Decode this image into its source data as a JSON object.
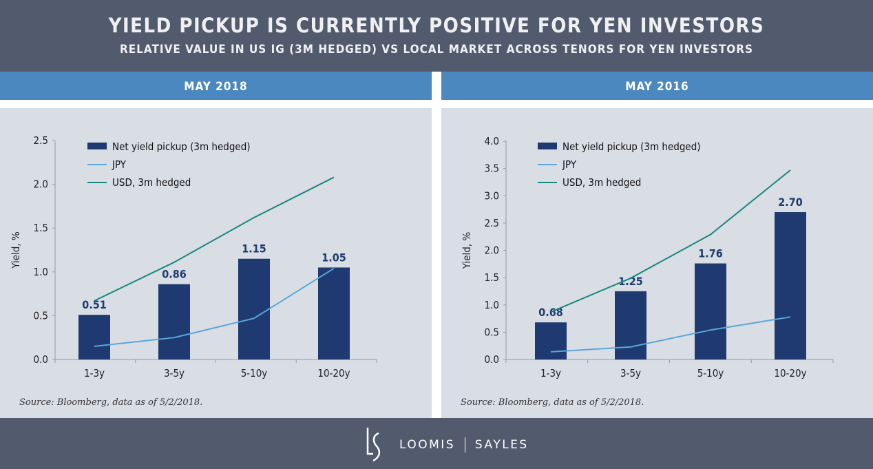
{
  "header": {
    "title": "YIELD PICKUP IS CURRENTLY POSITIVE FOR YEN INVESTORS",
    "subtitle": "RELATIVE VALUE IN US IG (3M HEDGED) VS LOCAL MARKET ACROSS TENORS FOR YEN INVESTORS"
  },
  "footer": {
    "logo_left": "LOOMIS",
    "logo_right": "SAYLES",
    "logo_mark": "LS"
  },
  "colors": {
    "bar": "#1e3a70",
    "jpy": "#5aa6dd",
    "usd": "#17877f",
    "header": "#525b6e",
    "band": "#4a88bf",
    "panel": "#d9dde4"
  },
  "chart_data": [
    {
      "type": "bar+line",
      "panel_title": "MAY 2018",
      "ylabel": "Yield, %",
      "ylim": [
        0,
        2.5
      ],
      "yticks": [
        "0.0",
        "0.5",
        "1.0",
        "1.5",
        "2.0",
        "2.5"
      ],
      "categories": [
        "1-3y",
        "3-5y",
        "5-10y",
        "10-20y"
      ],
      "series": [
        {
          "name": "Net yield pickup (3m hedged)",
          "type": "bar",
          "values": [
            0.51,
            0.86,
            1.15,
            1.05
          ],
          "labels": [
            "0.51",
            "0.86",
            "1.15",
            "1.05"
          ]
        },
        {
          "name": "JPY",
          "type": "line",
          "values": [
            0.15,
            0.25,
            0.47,
            1.04
          ]
        },
        {
          "name": "USD, 3m hedged",
          "type": "line",
          "values": [
            0.67,
            1.11,
            1.62,
            2.08
          ]
        }
      ],
      "source": "Source: Bloomberg, data as of 5/2/2018."
    },
    {
      "type": "bar+line",
      "panel_title": "MAY 2016",
      "ylabel": "Yield, %",
      "ylim": [
        0,
        4.0
      ],
      "yticks": [
        "0.0",
        "0.5",
        "1.0",
        "1.5",
        "2.0",
        "2.5",
        "3.0",
        "3.5",
        "4.0"
      ],
      "categories": [
        "1-3y",
        "3-5y",
        "5-10y",
        "10-20y"
      ],
      "series": [
        {
          "name": "Net yield pickup (3m hedged)",
          "type": "bar",
          "values": [
            0.68,
            1.25,
            1.76,
            2.7
          ],
          "labels": [
            "0.68",
            "1.25",
            "1.76",
            "2.70"
          ]
        },
        {
          "name": "JPY",
          "type": "line",
          "values": [
            0.14,
            0.23,
            0.54,
            0.78
          ]
        },
        {
          "name": "USD, 3m hedged",
          "type": "line",
          "values": [
            0.87,
            1.49,
            2.29,
            3.47
          ]
        }
      ],
      "source": "Source: Bloomberg, data as of 5/2/2018."
    }
  ]
}
